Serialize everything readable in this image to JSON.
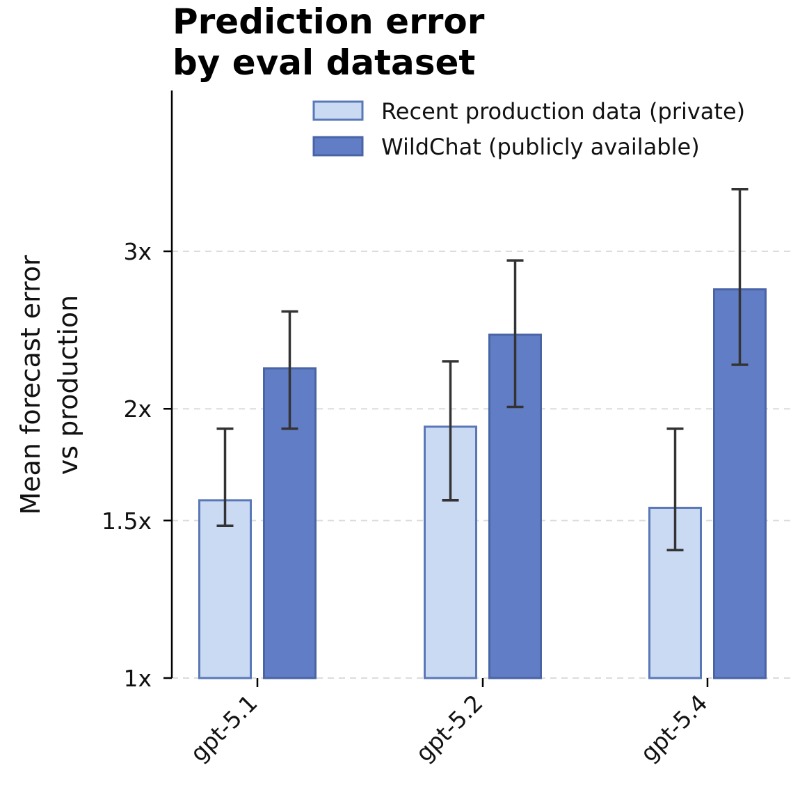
{
  "chart_data": {
    "type": "bar",
    "title": "Prediction error\nby eval dataset",
    "xlabel": "",
    "ylabel": "Mean forecast error\nvs production",
    "y_scale": "log",
    "ylim": [
      1,
      3.75
    ],
    "yticks": [
      {
        "value": 1,
        "label": "1x"
      },
      {
        "value": 1.5,
        "label": "1.5x"
      },
      {
        "value": 2,
        "label": "2x"
      },
      {
        "value": 3,
        "label": "3x"
      }
    ],
    "grid": "y dashed",
    "legend_position": "top-right",
    "categories": [
      "gpt-5.1",
      "gpt-5.2",
      "gpt-5.4"
    ],
    "series": [
      {
        "name": "Recent production data (private)",
        "fill": "#cbdaf3",
        "edge": "#5a78b8",
        "values": [
          1.58,
          1.91,
          1.55
        ],
        "err_low": [
          1.48,
          1.58,
          1.39
        ],
        "err_high": [
          1.9,
          2.26,
          1.9
        ]
      },
      {
        "name": "WildChat (publicly available)",
        "fill": "#617dc5",
        "edge": "#4a64a6",
        "values": [
          2.22,
          2.42,
          2.72
        ],
        "err_low": [
          1.9,
          2.01,
          2.24
        ],
        "err_high": [
          2.57,
          2.93,
          3.52
        ]
      }
    ]
  }
}
